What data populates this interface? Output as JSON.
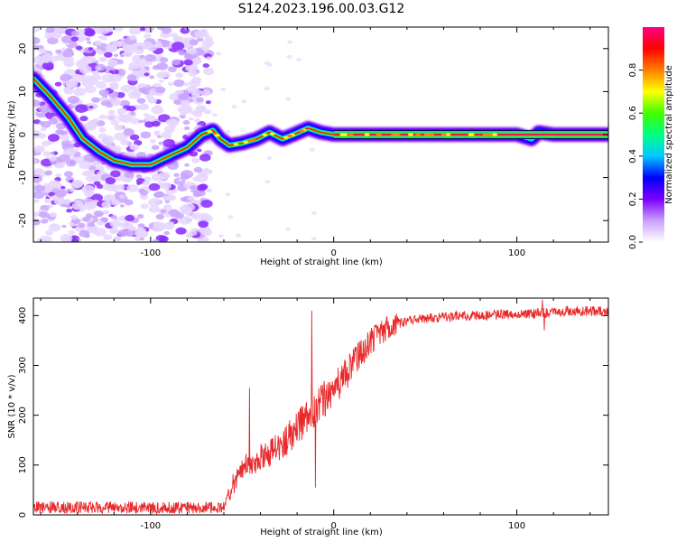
{
  "title": "S124.2023.196.00.03.G12",
  "chart_data": [
    {
      "type": "heatmap",
      "xlabel": "Height of straight line (km)",
      "ylabel": "Frequency (Hz)",
      "xlim": [
        -164,
        150
      ],
      "ylim": [
        -25,
        25
      ],
      "xticks": [
        -100,
        0,
        100
      ],
      "yticks": [
        -20,
        -10,
        0,
        10,
        20
      ],
      "colorbar": {
        "label": "Normalized spectral amplitude",
        "range": [
          0,
          1
        ],
        "ticks": [
          0.0,
          0.2,
          0.4,
          0.6,
          0.8
        ],
        "tick_labels": [
          "0.0",
          "0.2",
          "0.4",
          "0.6",
          "0.8"
        ],
        "colors": [
          "#ffffff",
          "#c8a0ff",
          "#7a00ff",
          "#0000ff",
          "#00c8ff",
          "#00ff80",
          "#40ff00",
          "#ffff00",
          "#ff8000",
          "#ff0000",
          "#ff0080"
        ]
      },
      "ridge": [
        {
          "x": -164,
          "y": 13
        },
        {
          "x": -155,
          "y": 9
        },
        {
          "x": -145,
          "y": 4
        },
        {
          "x": -137,
          "y": -1
        },
        {
          "x": -128,
          "y": -4
        },
        {
          "x": -120,
          "y": -6
        },
        {
          "x": -110,
          "y": -7
        },
        {
          "x": -100,
          "y": -7
        },
        {
          "x": -90,
          "y": -5
        },
        {
          "x": -80,
          "y": -3
        },
        {
          "x": -72,
          "y": 0
        },
        {
          "x": -66,
          "y": 1
        },
        {
          "x": -62,
          "y": -1
        },
        {
          "x": -57,
          "y": -2.5
        },
        {
          "x": -50,
          "y": -2
        },
        {
          "x": -42,
          "y": -1
        },
        {
          "x": -35,
          "y": 0.5
        },
        {
          "x": -28,
          "y": -1
        },
        {
          "x": -22,
          "y": 0
        },
        {
          "x": -14,
          "y": 1.5
        },
        {
          "x": -7,
          "y": 0.5
        },
        {
          "x": 0,
          "y": 0
        },
        {
          "x": 20,
          "y": 0
        },
        {
          "x": 50,
          "y": 0
        },
        {
          "x": 100,
          "y": 0
        },
        {
          "x": 108,
          "y": -1
        },
        {
          "x": 112,
          "y": 0.5
        },
        {
          "x": 120,
          "y": 0
        },
        {
          "x": 150,
          "y": 0
        }
      ],
      "noise_region_x": [
        -164,
        -68
      ]
    },
    {
      "type": "line",
      "xlabel": "Height of straight line (km)",
      "ylabel": "SNR (10 * v/v)",
      "xlim": [
        -164,
        150
      ],
      "ylim": [
        0,
        435
      ],
      "xticks": [
        -100,
        0,
        100
      ],
      "yticks": [
        0,
        100,
        200,
        300,
        400
      ],
      "color": "#e8282a",
      "series_trend": [
        {
          "x": -164,
          "y": 15
        },
        {
          "x": -120,
          "y": 15
        },
        {
          "x": -80,
          "y": 14
        },
        {
          "x": -60,
          "y": 16
        },
        {
          "x": -55,
          "y": 60
        },
        {
          "x": -48,
          "y": 100
        },
        {
          "x": -40,
          "y": 115
        },
        {
          "x": -30,
          "y": 135
        },
        {
          "x": -20,
          "y": 175
        },
        {
          "x": -10,
          "y": 215
        },
        {
          "x": 0,
          "y": 250
        },
        {
          "x": 10,
          "y": 300
        },
        {
          "x": 20,
          "y": 350
        },
        {
          "x": 30,
          "y": 378
        },
        {
          "x": 40,
          "y": 390
        },
        {
          "x": 60,
          "y": 398
        },
        {
          "x": 80,
          "y": 401
        },
        {
          "x": 100,
          "y": 402
        },
        {
          "x": 115,
          "y": 405
        },
        {
          "x": 130,
          "y": 410
        },
        {
          "x": 150,
          "y": 408
        }
      ],
      "spikes": [
        {
          "x": -46,
          "y": 255
        },
        {
          "x": -12,
          "y": 410
        },
        {
          "x": -10,
          "y": 55
        },
        {
          "x": 114,
          "y": 432
        },
        {
          "x": 115,
          "y": 370
        }
      ]
    }
  ]
}
